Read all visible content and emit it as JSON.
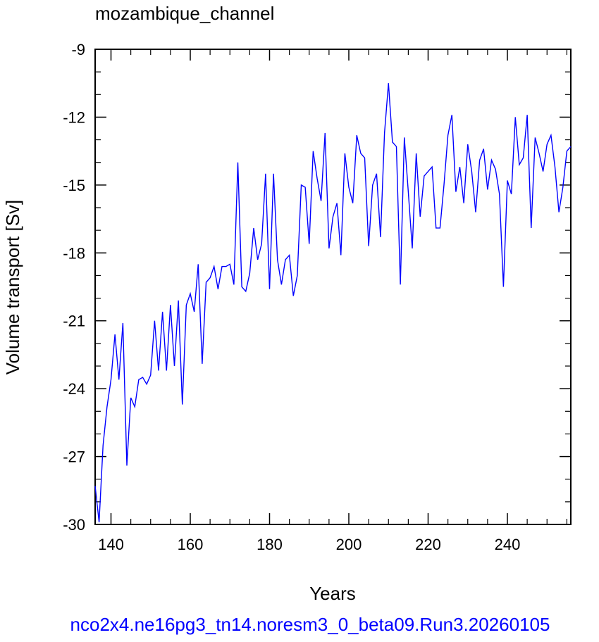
{
  "chart_data": {
    "type": "line",
    "title": "mozambique_channel",
    "xlabel": "Years",
    "ylabel": "Volume transport [Sv]",
    "footer": "nco2x4.ne16pg3_tn14.noresm3_0_beta09.Run3.20260105",
    "xlim": [
      136,
      256
    ],
    "ylim": [
      -30,
      -9
    ],
    "x_ticks": [
      140,
      160,
      180,
      200,
      220,
      240
    ],
    "y_ticks": [
      -30,
      -27,
      -24,
      -21,
      -18,
      -15,
      -12,
      -9
    ],
    "grid": false,
    "line_color": "#0000ff",
    "footer_color": "#0000ff",
    "series": [
      {
        "x": [
          136,
          137,
          138,
          139,
          140,
          141,
          142,
          143,
          144,
          145,
          146,
          147,
          148,
          149,
          150,
          151,
          152,
          153,
          154,
          155,
          156,
          157,
          158,
          159,
          160,
          161,
          162,
          163,
          164,
          165,
          166,
          167,
          168,
          169,
          170,
          171,
          172,
          173,
          174,
          175,
          176,
          177,
          178,
          179,
          180,
          181,
          182,
          183,
          184,
          185,
          186,
          187,
          188,
          189,
          190,
          191,
          192,
          193,
          194,
          195,
          196,
          197,
          198,
          199,
          200,
          201,
          202,
          203,
          204,
          205,
          206,
          207,
          208,
          209,
          210,
          211,
          212,
          213,
          214,
          215,
          216,
          217,
          218,
          219,
          220,
          221,
          222,
          223,
          224,
          225,
          226,
          227,
          228,
          229,
          230,
          231,
          232,
          233,
          234,
          235,
          236,
          237,
          238,
          239,
          240,
          241,
          242,
          243,
          244,
          245,
          246,
          247,
          248,
          249,
          250,
          251,
          252,
          253,
          254,
          255,
          256
        ],
        "values": [
          -28.3,
          -29.9,
          -26.5,
          -24.8,
          -23.6,
          -21.6,
          -23.6,
          -21.1,
          -27.4,
          -24.4,
          -24.8,
          -23.6,
          -23.5,
          -23.8,
          -23.4,
          -21.0,
          -23.2,
          -20.6,
          -23.2,
          -20.3,
          -23.0,
          -20.1,
          -24.7,
          -20.3,
          -19.8,
          -20.6,
          -18.5,
          -22.9,
          -19.3,
          -19.1,
          -18.6,
          -19.6,
          -18.6,
          -18.6,
          -18.5,
          -19.4,
          -14.0,
          -19.5,
          -19.7,
          -18.9,
          -16.9,
          -18.3,
          -17.6,
          -14.5,
          -19.6,
          -14.5,
          -18.3,
          -19.4,
          -18.3,
          -18.1,
          -19.9,
          -19.0,
          -15.0,
          -15.1,
          -17.6,
          -13.5,
          -14.7,
          -15.7,
          -12.7,
          -17.8,
          -16.4,
          -15.8,
          -18.1,
          -13.6,
          -15.1,
          -15.8,
          -12.8,
          -13.6,
          -13.8,
          -17.7,
          -15.0,
          -14.5,
          -17.3,
          -12.7,
          -10.5,
          -13.1,
          -13.3,
          -19.4,
          -12.9,
          -15.3,
          -17.8,
          -13.6,
          -16.4,
          -14.6,
          -14.4,
          -14.2,
          -16.9,
          -16.9,
          -15.0,
          -12.8,
          -11.9,
          -15.3,
          -14.2,
          -15.8,
          -13.2,
          -14.4,
          -16.2,
          -13.9,
          -13.4,
          -15.2,
          -13.9,
          -14.3,
          -15.4,
          -19.5,
          -14.8,
          -15.4,
          -12.0,
          -14.1,
          -13.8,
          -11.9,
          -16.9,
          -12.9,
          -13.6,
          -14.4,
          -13.2,
          -12.8,
          -14.2,
          -16.2,
          -15.1,
          -13.5,
          -13.3
        ]
      }
    ]
  }
}
